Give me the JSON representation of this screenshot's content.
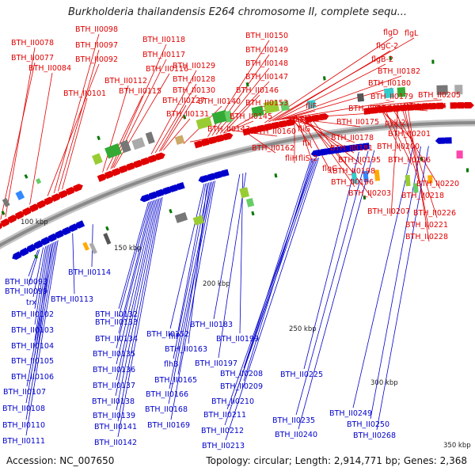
{
  "title": "Burkholderia thailandensis E264 chromosome II, complete sequ...",
  "footer": {
    "accession": "Accession: NC_007650",
    "topology": "Topology: circular",
    "length": "Length: 2,914,771 bp",
    "genes": "Genes: 2,368",
    "separator": "; "
  },
  "colors": {
    "forward": "#e00000",
    "reverse": "#0000cc",
    "backbone": "#8a8a8a",
    "tick": "#007700"
  },
  "scale_labels": [
    "100 kbp",
    "150 kbp",
    "200 kbp",
    "250 kbp",
    "300 kbp",
    "350 kbp"
  ],
  "forward_labels": [
    "BTH_II0098",
    "BTH_II0078",
    "BTH_II0097",
    "BTH_II0077",
    "BTH_II0092",
    "BTH_II0084",
    "BTH_II0101",
    "BTH_II0118",
    "BTH_II0117",
    "BTH_II0116",
    "BTH_II0112",
    "BTH_II0115",
    "BTH_II0127",
    "BTH_II0131",
    "BTH_II0129",
    "BTH_II0128",
    "BTH_II0130",
    "BTH_II0140",
    "BTH_II0143",
    "BTH_II0150",
    "BTH_II0149",
    "BTH_II0148",
    "BTH_II0147",
    "BTH_II0146",
    "BTH_II0153",
    "BTH_II0145",
    "BTH_II0160",
    "BTH_II0162",
    "flgD",
    "flgL",
    "flgC-2",
    "flgB-2",
    "BTH_II0182",
    "BTH_II0180",
    "BTH_II0179",
    "BTH_II0176",
    "BTH_II0175",
    "BTH_II0178",
    "BTH_II0181",
    "BTH_II0195",
    "BTH_II0198",
    "BTH_II0196",
    "BTH_II0203",
    "fliF",
    "fliE-2",
    "fliG",
    "fliI",
    "fliH",
    "fliS-2",
    "flgG",
    "BTH_II0205",
    "BTH_II0204",
    "BTH_II0201",
    "pyk-2",
    "BTH_II0200",
    "BTH_II0206",
    "BTH_II0220",
    "BTH_II0218",
    "BTH_II0207",
    "BTH_II0226",
    "BTH_II0221",
    "BTH_II0228"
  ],
  "reverse_labels": [
    "BTH_II0114",
    "BTH_II0093",
    "BTH_II0099",
    "trx",
    "BTH_II0113",
    "BTH_II0102",
    "BTH_II0103",
    "BTH_II0104",
    "BTH_II0105",
    "BTH_II0106",
    "BTH_II0107",
    "BTH_II0108",
    "BTH_II0110",
    "BTH_II0111",
    "BTH_II0132",
    "BTH_II0133",
    "BTH_II0134",
    "BTH_II0135",
    "BTH_II0136",
    "BTH_II0137",
    "BTH_II0138",
    "BTH_II0139",
    "BTH_II0141",
    "BTH_II0142",
    "BTH_II0152",
    "fliP",
    "BTH_II0163",
    "flhB",
    "BTH_II0165",
    "BTH_II0166",
    "BTH_II0168",
    "BTH_II0169",
    "BTH_II0183",
    "BTH_II0199",
    "BTH_II0197",
    "BTH_II0208",
    "BTH_II0209",
    "BTH_II0210",
    "BTH_II0211",
    "BTH_II0212",
    "BTH_II0213",
    "BTH_II0225",
    "BTH_II0235",
    "BTH_II0240",
    "BTH_II0249",
    "BTH_II0250",
    "BTH_II0268"
  ]
}
